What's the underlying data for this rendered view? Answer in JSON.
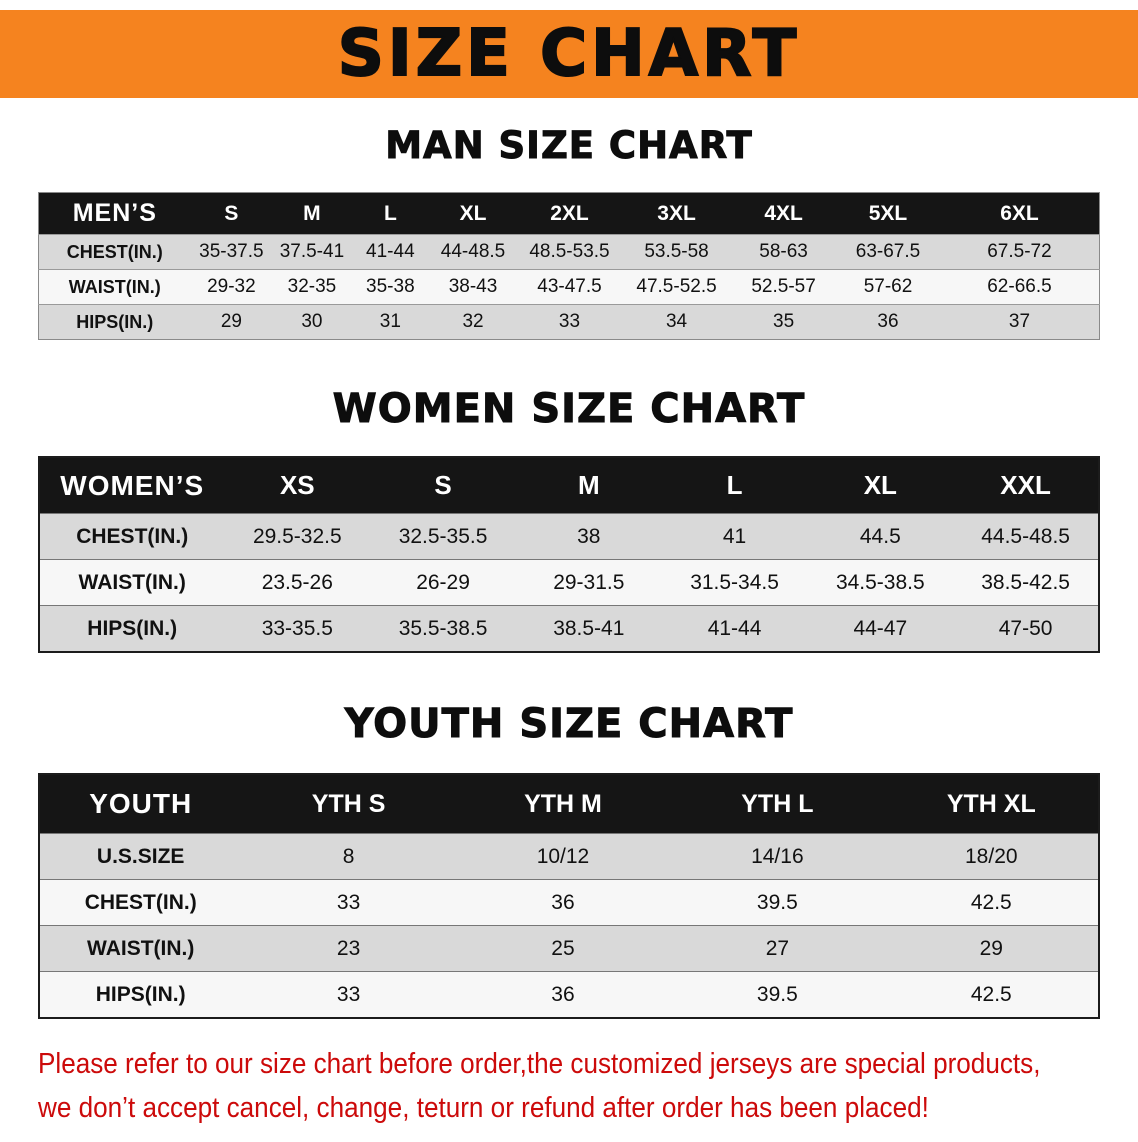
{
  "colors": {
    "banner_bg": "#F5831F",
    "header_bg": "#151515",
    "row_shaded": "#D9D9D9",
    "row_plain": "#F7F7F7",
    "note_red": "#CC0A0A"
  },
  "banner": {
    "title": "SIZE CHART"
  },
  "men": {
    "heading": "MAN SIZE CHART",
    "table": {
      "header": [
        "MEN’S",
        "S",
        "M",
        "L",
        "XL",
        "2XL",
        "3XL",
        "4XL",
        "5XL",
        "6XL"
      ],
      "rows": [
        [
          "CHEST(IN.)",
          "35-37.5",
          "37.5-41",
          "41-44",
          "44-48.5",
          "48.5-53.5",
          "53.5-58",
          "58-63",
          "63-67.5",
          "67.5-72"
        ],
        [
          "WAIST(IN.)",
          "29-32",
          "32-35",
          "35-38",
          "38-43",
          "43-47.5",
          "47.5-52.5",
          "52.5-57",
          "57-62",
          "62-66.5"
        ],
        [
          "HIPS(IN.)",
          "29",
          "30",
          "31",
          "32",
          "33",
          "34",
          "35",
          "36",
          "37"
        ]
      ]
    }
  },
  "women": {
    "heading": "WOMEN SIZE CHART",
    "table": {
      "header": [
        "WOMEN’S",
        "XS",
        "S",
        "M",
        "L",
        "XL",
        "XXL"
      ],
      "rows": [
        [
          "CHEST(IN.)",
          "29.5-32.5",
          "32.5-35.5",
          "38",
          "41",
          "44.5",
          "44.5-48.5"
        ],
        [
          "WAIST(IN.)",
          "23.5-26",
          "26-29",
          "29-31.5",
          "31.5-34.5",
          "34.5-38.5",
          "38.5-42.5"
        ],
        [
          "HIPS(IN.)",
          "33-35.5",
          "35.5-38.5",
          "38.5-41",
          "41-44",
          "44-47",
          "47-50"
        ]
      ]
    }
  },
  "youth": {
    "heading": "YOUTH SIZE CHART",
    "table": {
      "header": [
        "YOUTH",
        "YTH S",
        "YTH M",
        "YTH L",
        "YTH XL"
      ],
      "rows": [
        [
          "U.S.SIZE",
          "8",
          "10/12",
          "14/16",
          "18/20"
        ],
        [
          "CHEST(IN.)",
          "33",
          "36",
          "39.5",
          "42.5"
        ],
        [
          "WAIST(IN.)",
          "23",
          "25",
          "27",
          "29"
        ],
        [
          "HIPS(IN.)",
          "33",
          "36",
          "39.5",
          "42.5"
        ]
      ]
    }
  },
  "note": {
    "line1": "Please refer to our size chart before order,the customized jerseys are special products,",
    "line2": "we don’t accept cancel, change, teturn or refund after order has been placed!"
  }
}
